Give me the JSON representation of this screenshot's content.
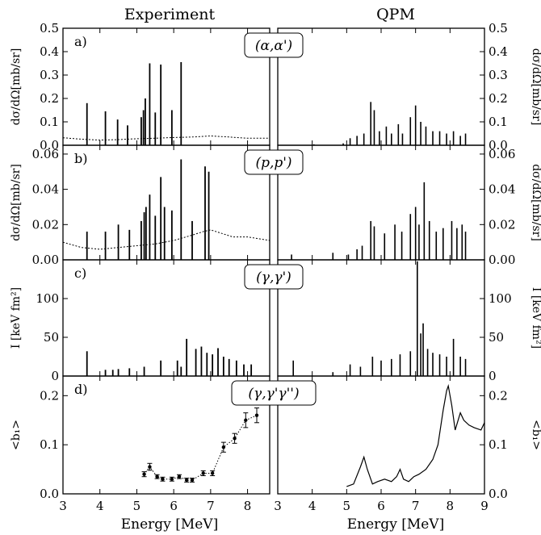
{
  "chart_data": {
    "type": "multi-panel",
    "columns": [
      "Experiment",
      "QPM"
    ],
    "xlabel": "Energy [MeV]",
    "left_xlim": [
      3,
      8.6
    ],
    "right_xlim": [
      3,
      9
    ],
    "left_xticks": [
      "3",
      "4",
      "5",
      "6",
      "7",
      "8"
    ],
    "right_xticks": [
      "3",
      "4",
      "5",
      "6",
      "7",
      "8",
      "9"
    ],
    "panels": [
      {
        "label": "a)",
        "reaction": "(α,α')",
        "ylabel": "dσ/dΩ[mb/sr]",
        "ylim": [
          0,
          0.5
        ],
        "yticks": [
          "0.0",
          "0.1",
          "0.2",
          "0.3",
          "0.4",
          "0.5"
        ],
        "experiment_lines": [
          {
            "x": 3.65,
            "y": 0.18
          },
          {
            "x": 4.15,
            "y": 0.145
          },
          {
            "x": 4.48,
            "y": 0.11
          },
          {
            "x": 4.75,
            "y": 0.085
          },
          {
            "x": 5.12,
            "y": 0.12
          },
          {
            "x": 5.18,
            "y": 0.15
          },
          {
            "x": 5.23,
            "y": 0.2
          },
          {
            "x": 5.35,
            "y": 0.35
          },
          {
            "x": 5.5,
            "y": 0.14
          },
          {
            "x": 5.65,
            "y": 0.345
          },
          {
            "x": 5.95,
            "y": 0.15
          },
          {
            "x": 6.2,
            "y": 0.355
          }
        ],
        "experiment_curve": {
          "x": [
            3.0,
            3.5,
            4.0,
            4.5,
            5.0,
            5.5,
            6.0,
            6.5,
            7.0,
            7.5,
            8.0,
            8.6
          ],
          "y": [
            0.032,
            0.026,
            0.022,
            0.024,
            0.028,
            0.03,
            0.033,
            0.035,
            0.04,
            0.035,
            0.03,
            0.03
          ]
        },
        "qpm_lines": [
          {
            "x": 4.05,
            "y": 0.004
          },
          {
            "x": 4.9,
            "y": 0.008
          },
          {
            "x": 5.1,
            "y": 0.03
          },
          {
            "x": 5.3,
            "y": 0.04
          },
          {
            "x": 5.5,
            "y": 0.05
          },
          {
            "x": 5.7,
            "y": 0.185
          },
          {
            "x": 5.8,
            "y": 0.15
          },
          {
            "x": 5.95,
            "y": 0.06
          },
          {
            "x": 6.15,
            "y": 0.08
          },
          {
            "x": 6.3,
            "y": 0.05
          },
          {
            "x": 6.5,
            "y": 0.09
          },
          {
            "x": 6.62,
            "y": 0.05
          },
          {
            "x": 6.85,
            "y": 0.12
          },
          {
            "x": 7.0,
            "y": 0.17
          },
          {
            "x": 7.15,
            "y": 0.1
          },
          {
            "x": 7.3,
            "y": 0.08
          },
          {
            "x": 7.5,
            "y": 0.06
          },
          {
            "x": 7.7,
            "y": 0.06
          },
          {
            "x": 7.9,
            "y": 0.05
          },
          {
            "x": 8.1,
            "y": 0.06
          },
          {
            "x": 8.3,
            "y": 0.04
          },
          {
            "x": 8.45,
            "y": 0.05
          }
        ]
      },
      {
        "label": "b)",
        "reaction": "(p,p')",
        "ylabel": "dσ/dΩ[mb/sr]",
        "ylim": [
          0,
          0.065
        ],
        "yticks": [
          "0.00",
          "0.02",
          "0.04",
          "0.06"
        ],
        "experiment_lines": [
          {
            "x": 3.65,
            "y": 0.016
          },
          {
            "x": 4.15,
            "y": 0.016
          },
          {
            "x": 4.5,
            "y": 0.02
          },
          {
            "x": 4.8,
            "y": 0.017
          },
          {
            "x": 5.12,
            "y": 0.022
          },
          {
            "x": 5.2,
            "y": 0.027
          },
          {
            "x": 5.25,
            "y": 0.03
          },
          {
            "x": 5.35,
            "y": 0.037
          },
          {
            "x": 5.5,
            "y": 0.025
          },
          {
            "x": 5.65,
            "y": 0.047
          },
          {
            "x": 5.75,
            "y": 0.03
          },
          {
            "x": 5.95,
            "y": 0.028
          },
          {
            "x": 6.2,
            "y": 0.057
          },
          {
            "x": 6.5,
            "y": 0.022
          },
          {
            "x": 6.85,
            "y": 0.053
          },
          {
            "x": 6.95,
            "y": 0.05
          }
        ],
        "experiment_curve": {
          "x": [
            3.0,
            3.5,
            4.0,
            4.5,
            5.0,
            5.5,
            6.0,
            6.5,
            6.8,
            7.0,
            7.3,
            7.6,
            8.0,
            8.6
          ],
          "y": [
            0.01,
            0.007,
            0.006,
            0.007,
            0.008,
            0.009,
            0.011,
            0.014,
            0.016,
            0.017,
            0.015,
            0.013,
            0.013,
            0.011
          ]
        },
        "qpm_lines": [
          {
            "x": 3.4,
            "y": 0.003
          },
          {
            "x": 4.6,
            "y": 0.004
          },
          {
            "x": 5.05,
            "y": 0.003
          },
          {
            "x": 5.3,
            "y": 0.006
          },
          {
            "x": 5.45,
            "y": 0.008
          },
          {
            "x": 5.7,
            "y": 0.022
          },
          {
            "x": 5.8,
            "y": 0.019
          },
          {
            "x": 6.1,
            "y": 0.015
          },
          {
            "x": 6.4,
            "y": 0.02
          },
          {
            "x": 6.6,
            "y": 0.016
          },
          {
            "x": 6.85,
            "y": 0.026
          },
          {
            "x": 7.0,
            "y": 0.03
          },
          {
            "x": 7.1,
            "y": 0.02
          },
          {
            "x": 7.25,
            "y": 0.044
          },
          {
            "x": 7.4,
            "y": 0.022
          },
          {
            "x": 7.6,
            "y": 0.016
          },
          {
            "x": 7.8,
            "y": 0.018
          },
          {
            "x": 8.05,
            "y": 0.022
          },
          {
            "x": 8.2,
            "y": 0.018
          },
          {
            "x": 8.35,
            "y": 0.02
          },
          {
            "x": 8.45,
            "y": 0.016
          }
        ]
      },
      {
        "label": "c)",
        "reaction": "(γ,γ')",
        "ylabel": "I [keV fm²]",
        "ylim": [
          0,
          150
        ],
        "yticks": [
          "0",
          "50",
          "100"
        ],
        "experiment_lines": [
          {
            "x": 3.65,
            "y": 32
          },
          {
            "x": 4.15,
            "y": 8
          },
          {
            "x": 4.35,
            "y": 8
          },
          {
            "x": 4.5,
            "y": 9
          },
          {
            "x": 4.8,
            "y": 10
          },
          {
            "x": 5.2,
            "y": 12
          },
          {
            "x": 5.65,
            "y": 20
          },
          {
            "x": 6.1,
            "y": 20
          },
          {
            "x": 6.2,
            "y": 12
          },
          {
            "x": 6.35,
            "y": 48
          },
          {
            "x": 6.6,
            "y": 35
          },
          {
            "x": 6.75,
            "y": 38
          },
          {
            "x": 6.9,
            "y": 30
          },
          {
            "x": 7.05,
            "y": 28
          },
          {
            "x": 7.2,
            "y": 36
          },
          {
            "x": 7.35,
            "y": 25
          },
          {
            "x": 7.5,
            "y": 22
          },
          {
            "x": 7.7,
            "y": 20
          },
          {
            "x": 7.9,
            "y": 15
          },
          {
            "x": 8.1,
            "y": 15
          }
        ],
        "qpm_lines": [
          {
            "x": 3.45,
            "y": 20
          },
          {
            "x": 4.6,
            "y": 5
          },
          {
            "x": 5.1,
            "y": 15
          },
          {
            "x": 5.4,
            "y": 12
          },
          {
            "x": 5.75,
            "y": 25
          },
          {
            "x": 6.0,
            "y": 20
          },
          {
            "x": 6.3,
            "y": 22
          },
          {
            "x": 6.55,
            "y": 28
          },
          {
            "x": 6.85,
            "y": 32
          },
          {
            "x": 7.05,
            "y": 148
          },
          {
            "x": 7.15,
            "y": 55
          },
          {
            "x": 7.22,
            "y": 68
          },
          {
            "x": 7.35,
            "y": 35
          },
          {
            "x": 7.5,
            "y": 30
          },
          {
            "x": 7.7,
            "y": 28
          },
          {
            "x": 7.9,
            "y": 25
          },
          {
            "x": 8.1,
            "y": 48
          },
          {
            "x": 8.3,
            "y": 25
          },
          {
            "x": 8.45,
            "y": 22
          }
        ]
      },
      {
        "label": "d)",
        "reaction": "(γ,γ'γ'')",
        "ylabel": "<b₁>",
        "ylim": [
          0,
          0.24
        ],
        "yticks": [
          "0.0",
          "0.1",
          "0.2"
        ],
        "experiment_points": {
          "x": [
            5.2,
            5.35,
            5.55,
            5.7,
            5.95,
            6.15,
            6.35,
            6.5,
            6.8,
            7.05,
            7.35,
            7.65,
            7.95,
            8.25
          ],
          "y": [
            0.04,
            0.055,
            0.035,
            0.03,
            0.03,
            0.035,
            0.028,
            0.028,
            0.042,
            0.042,
            0.095,
            0.113,
            0.15,
            0.16
          ],
          "err": [
            0.005,
            0.007,
            0.004,
            0.004,
            0.004,
            0.004,
            0.004,
            0.004,
            0.005,
            0.005,
            0.01,
            0.01,
            0.015,
            0.015
          ]
        },
        "qpm_curve": {
          "x": [
            5.0,
            5.2,
            5.4,
            5.5,
            5.6,
            5.75,
            5.9,
            6.1,
            6.3,
            6.45,
            6.55,
            6.65,
            6.8,
            6.95,
            7.1,
            7.3,
            7.5,
            7.65,
            7.8,
            7.9,
            7.95,
            8.05,
            8.15,
            8.3,
            8.4,
            8.55,
            8.7,
            8.9,
            9.0
          ],
          "y": [
            0.015,
            0.02,
            0.055,
            0.075,
            0.05,
            0.02,
            0.025,
            0.03,
            0.025,
            0.035,
            0.05,
            0.03,
            0.025,
            0.035,
            0.04,
            0.05,
            0.07,
            0.1,
            0.17,
            0.21,
            0.22,
            0.18,
            0.13,
            0.165,
            0.15,
            0.14,
            0.135,
            0.13,
            0.145
          ]
        }
      }
    ]
  }
}
